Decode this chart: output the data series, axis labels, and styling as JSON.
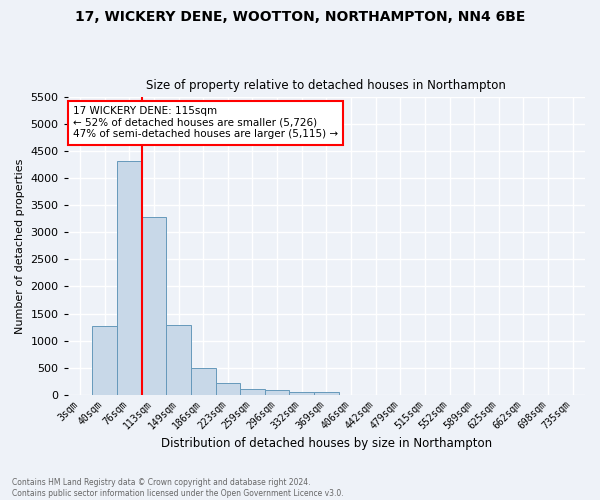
{
  "title1": "17, WICKERY DENE, WOOTTON, NORTHAMPTON, NN4 6BE",
  "title2": "Size of property relative to detached houses in Northampton",
  "xlabel": "Distribution of detached houses by size in Northampton",
  "ylabel": "Number of detached properties",
  "footnote1": "Contains HM Land Registry data © Crown copyright and database right 2024.",
  "footnote2": "Contains public sector information licensed under the Open Government Licence v3.0.",
  "annotation_line1": "17 WICKERY DENE: 115sqm",
  "annotation_line2": "← 52% of detached houses are smaller (5,726)",
  "annotation_line3": "47% of semi-detached houses are larger (5,115) →",
  "bar_labels": [
    "3sqm",
    "40sqm",
    "76sqm",
    "113sqm",
    "149sqm",
    "186sqm",
    "223sqm",
    "259sqm",
    "296sqm",
    "332sqm",
    "369sqm",
    "406sqm",
    "442sqm",
    "479sqm",
    "515sqm",
    "552sqm",
    "589sqm",
    "625sqm",
    "662sqm",
    "698sqm",
    "735sqm"
  ],
  "bar_values": [
    0,
    1270,
    4330,
    3290,
    1280,
    490,
    215,
    95,
    80,
    55,
    55,
    0,
    0,
    0,
    0,
    0,
    0,
    0,
    0,
    0,
    0
  ],
  "bar_color": "#c8d8e8",
  "bar_edge_color": "#6699bb",
  "property_line_x": 2.5,
  "property_line_color": "red",
  "ylim": [
    0,
    5500
  ],
  "yticks": [
    0,
    500,
    1000,
    1500,
    2000,
    2500,
    3000,
    3500,
    4000,
    4500,
    5000,
    5500
  ],
  "bg_color": "#eef2f8",
  "grid_color": "#ffffff",
  "annotation_box_color": "white",
  "annotation_box_edge": "red",
  "fig_width": 6.0,
  "fig_height": 5.0
}
